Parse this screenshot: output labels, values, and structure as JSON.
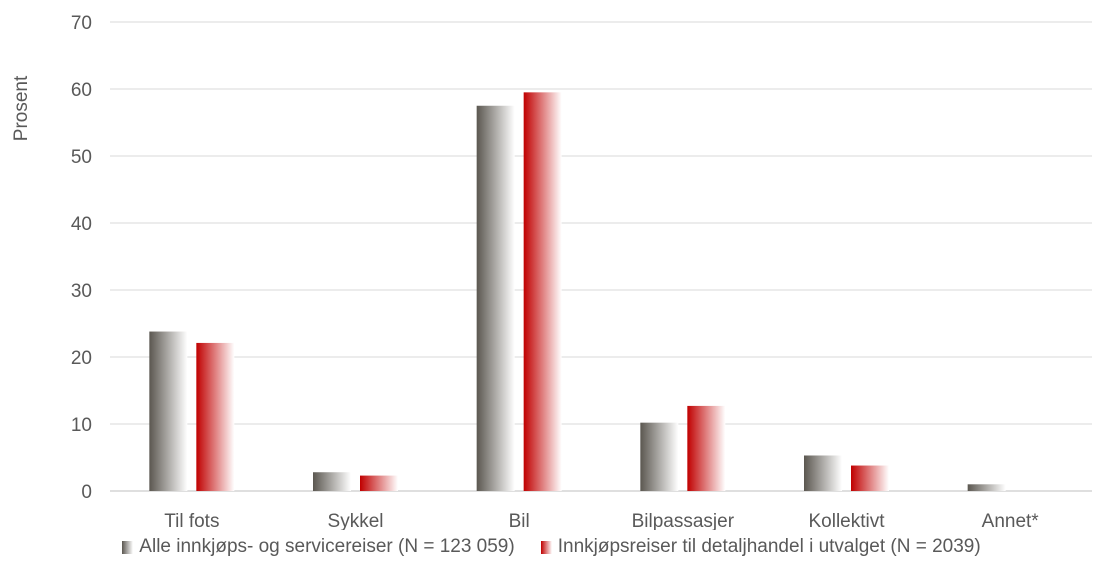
{
  "chart_data": {
    "type": "bar",
    "ylabel": "Prosent",
    "xlabel": "",
    "ylim": [
      0,
      70
    ],
    "yticks": [
      0,
      10,
      20,
      30,
      40,
      50,
      60,
      70
    ],
    "grid": true,
    "legend_position": "bottom",
    "categories": [
      "Til fots",
      "Sykkel",
      "Bil",
      "Bilpassasjer",
      "Kollektivt",
      "Annet*"
    ],
    "series": [
      {
        "name": "Alle innkjøps- og servicereiser (N = 123 059)",
        "values": [
          23.8,
          2.8,
          57.5,
          10.2,
          5.3,
          1.0
        ],
        "color": "#5b5750"
      },
      {
        "name": "Innkjøpsreiser til detaljhandel i utvalget (N = 2039)",
        "values": [
          22.1,
          2.3,
          59.5,
          12.7,
          3.8,
          0.0
        ],
        "color": "#c00000"
      }
    ]
  }
}
